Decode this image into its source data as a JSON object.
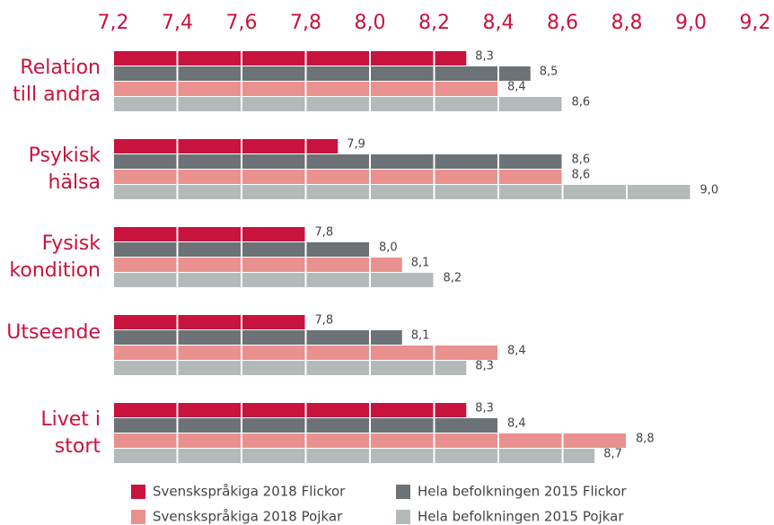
{
  "chart_data": {
    "type": "bar",
    "orientation": "horizontal",
    "categories": [
      [
        "Relation",
        "till andra"
      ],
      [
        "Psykisk",
        "hälsa"
      ],
      [
        "Fysisk",
        "kondition"
      ],
      [
        "Utseende"
      ],
      [
        "Livet i",
        "stort"
      ]
    ],
    "series": [
      {
        "name": "Svenskspråkiga 2018 Flickor",
        "color": "#c8133f",
        "values": [
          8.3,
          7.9,
          7.8,
          7.8,
          8.3
        ],
        "value_labels": [
          "8,3",
          "7,9",
          "7,8",
          "7,8",
          "8,3"
        ]
      },
      {
        "name": "Hela befolkningen 2015 Flickor",
        "color": "#6d7276",
        "values": [
          8.5,
          8.6,
          8.0,
          8.1,
          8.4
        ],
        "value_labels": [
          "8,5",
          "8,6",
          "8,0",
          "8,1",
          "8,4"
        ]
      },
      {
        "name": "Svenskspråkiga 2018 Pojkar",
        "color": "#e8918e",
        "values": [
          8.4,
          8.6,
          8.1,
          8.4,
          8.8
        ],
        "value_labels": [
          "8,4",
          "8,6",
          "8,1",
          "8,4",
          "8,8"
        ]
      },
      {
        "name": "Hela befolkningen 2015 Pojkar",
        "color": "#b4b9b9",
        "values": [
          8.6,
          9.0,
          8.2,
          8.3,
          8.7
        ],
        "value_labels": [
          "8,6",
          "9,0",
          "8,2",
          "8,3",
          "8,7"
        ]
      }
    ],
    "xlim": [
      7.2,
      9.2
    ],
    "xticks": [
      {
        "value": 7.2,
        "label": "7,2"
      },
      {
        "value": 7.4,
        "label": "7,4"
      },
      {
        "value": 7.6,
        "label": "7,6"
      },
      {
        "value": 7.8,
        "label": "7,8"
      },
      {
        "value": 8.0,
        "label": "8,0"
      },
      {
        "value": 8.2,
        "label": "8,2"
      },
      {
        "value": 8.4,
        "label": "8,4"
      },
      {
        "value": 8.6,
        "label": "8,6"
      },
      {
        "value": 8.8,
        "label": "8,8"
      },
      {
        "value": 9.0,
        "label": "9,0"
      },
      {
        "value": 9.2,
        "label": "9,2"
      }
    ],
    "grid": true,
    "legend": "bottom"
  }
}
